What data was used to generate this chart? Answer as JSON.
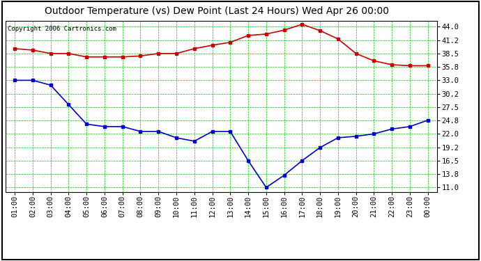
{
  "title": "Outdoor Temperature (vs) Dew Point (Last 24 Hours) Wed Apr 26 00:00",
  "copyright": "Copyright 2006 Cartronics.com",
  "x_labels": [
    "01:00",
    "02:00",
    "03:00",
    "04:00",
    "05:00",
    "06:00",
    "07:00",
    "08:00",
    "09:00",
    "10:00",
    "11:00",
    "12:00",
    "13:00",
    "14:00",
    "15:00",
    "16:00",
    "17:00",
    "18:00",
    "19:00",
    "20:00",
    "21:00",
    "22:00",
    "23:00",
    "00:00"
  ],
  "temp_data": [
    39.5,
    39.2,
    38.5,
    38.5,
    37.8,
    37.8,
    37.8,
    38.0,
    38.5,
    38.5,
    39.5,
    40.2,
    40.8,
    42.2,
    42.5,
    43.3,
    44.5,
    43.2,
    41.5,
    38.5,
    37.0,
    36.2,
    36.0,
    36.0
  ],
  "dew_data": [
    33.0,
    33.0,
    32.0,
    28.0,
    24.0,
    23.5,
    23.5,
    22.5,
    22.5,
    21.2,
    20.5,
    22.5,
    22.5,
    16.5,
    11.0,
    13.5,
    16.5,
    19.2,
    21.2,
    21.5,
    22.0,
    23.0,
    23.5,
    24.8
  ],
  "temp_color": "#cc0000",
  "dew_color": "#0000cc",
  "bg_color": "#ffffff",
  "plot_bg_color": "#ffffff",
  "grid_color": "#00cc00",
  "yticks": [
    11.0,
    13.8,
    16.5,
    19.2,
    22.0,
    24.8,
    27.5,
    30.2,
    33.0,
    35.8,
    38.5,
    41.2,
    44.0
  ],
  "ylim": [
    10.1,
    45.2
  ],
  "marker": "s",
  "marker_size": 2.5,
  "line_width": 1.2,
  "title_fontsize": 10,
  "tick_fontsize": 7.5,
  "copyright_fontsize": 6.5
}
